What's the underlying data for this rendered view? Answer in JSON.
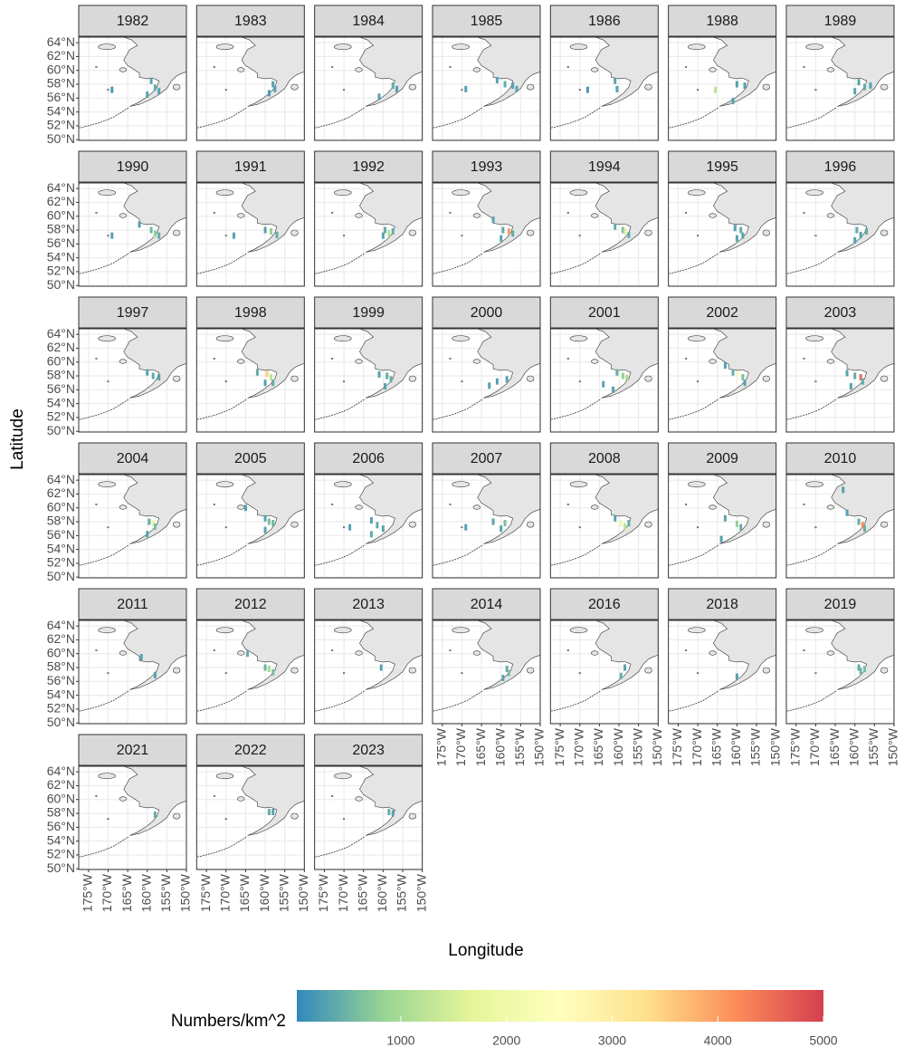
{
  "chart_data": {
    "type": "map",
    "y_label": "Latitude",
    "x_label": "Longitude",
    "xlim": [
      -177.5,
      -150
    ],
    "ylim": [
      49.9,
      64.8
    ],
    "xticks": [
      {
        "value": -175,
        "label": "175°W"
      },
      {
        "value": -170,
        "label": "170°W"
      },
      {
        "value": -165,
        "label": "165°W"
      },
      {
        "value": -160,
        "label": "160°W"
      },
      {
        "value": -155,
        "label": "155°W"
      },
      {
        "value": -150,
        "label": "150°W"
      }
    ],
    "yticks": [
      {
        "value": 50,
        "label": "50°N"
      },
      {
        "value": 52,
        "label": "52°N"
      },
      {
        "value": 54,
        "label": "54°N"
      },
      {
        "value": 56,
        "label": "56°N"
      },
      {
        "value": 58,
        "label": "58°N"
      },
      {
        "value": 60,
        "label": "60°N"
      },
      {
        "value": 62,
        "label": "62°N"
      },
      {
        "value": 64,
        "label": "64°N"
      }
    ],
    "grid": true,
    "colorbar": {
      "title": "Numbers/km^2",
      "lim": [
        15,
        5000
      ],
      "ticks": [
        1000,
        2000,
        3000,
        4000,
        5000
      ],
      "colors": [
        "#3288bd",
        "#99d594",
        "#e6f598",
        "#ffffbf",
        "#fee08b",
        "#fc8d59",
        "#d53e4f"
      ],
      "position": "bottom"
    },
    "facets": [
      {
        "title": "1982",
        "x": [
          -169,
          -159,
          -158,
          -160,
          -157
        ],
        "y": [
          57.2,
          58.5,
          57.5,
          56.5,
          57
        ],
        "values": [
          200,
          300,
          400,
          300,
          300
        ]
      },
      {
        "title": "1983",
        "x": [
          -158,
          -157.5,
          -159
        ],
        "y": [
          58,
          57.3,
          56.7
        ],
        "values": [
          300,
          300,
          200
        ]
      },
      {
        "title": "1984",
        "x": [
          -161,
          -157.5,
          -156.5
        ],
        "y": [
          56.2,
          57.8,
          57.3
        ],
        "values": [
          300,
          400,
          300
        ]
      },
      {
        "title": "1985",
        "x": [
          -169,
          -161,
          -159,
          -157,
          -156
        ],
        "y": [
          57.3,
          58.6,
          58,
          57.8,
          57.3
        ],
        "values": [
          300,
          300,
          400,
          300,
          300
        ]
      },
      {
        "title": "1986",
        "x": [
          -168,
          -161,
          -160.5
        ],
        "y": [
          57.2,
          58.5,
          57.3
        ],
        "values": [
          200,
          300,
          300
        ]
      },
      {
        "title": "1988",
        "x": [
          -165.5,
          -160,
          -158,
          -161
        ],
        "y": [
          57.2,
          58,
          57.8,
          55.6
        ],
        "values": [
          1200,
          300,
          300,
          300
        ]
      },
      {
        "title": "1989",
        "x": [
          -159,
          -157.5,
          -156,
          -160
        ],
        "y": [
          58.3,
          57.6,
          57.8,
          57
        ],
        "values": [
          300,
          400,
          300,
          300
        ]
      },
      {
        "title": "1990",
        "x": [
          -169,
          -162,
          -159,
          -158,
          -157
        ],
        "y": [
          57.2,
          58.8,
          58,
          57.5,
          57.2
        ],
        "values": [
          300,
          300,
          500,
          800,
          400
        ]
      },
      {
        "title": "1991",
        "x": [
          -168,
          -160,
          -158.5,
          -157
        ],
        "y": [
          57.2,
          58,
          57.8,
          57.3
        ],
        "values": [
          300,
          300,
          800,
          400
        ]
      },
      {
        "title": "1992",
        "x": [
          -159.5,
          -158.5,
          -157.5,
          -160
        ],
        "y": [
          58,
          57.5,
          57.8,
          57.2
        ],
        "values": [
          400,
          1100,
          400,
          300
        ]
      },
      {
        "title": "1993",
        "x": [
          -162,
          -159.5,
          -158,
          -157,
          -160
        ],
        "y": [
          59.5,
          58,
          57.8,
          57.5,
          56.8
        ],
        "values": [
          300,
          400,
          4000,
          400,
          300
        ]
      },
      {
        "title": "1994",
        "x": [
          -161,
          -159,
          -158.5,
          -157.5
        ],
        "y": [
          58.5,
          58,
          57.8,
          57.3
        ],
        "values": [
          400,
          600,
          1500,
          400
        ]
      },
      {
        "title": "1995",
        "x": [
          -160.5,
          -159,
          -158.5,
          -160
        ],
        "y": [
          58.3,
          58,
          57.2,
          56.8
        ],
        "values": [
          300,
          400,
          300,
          300
        ]
      },
      {
        "title": "1996",
        "x": [
          -159.5,
          -158.5,
          -157,
          -160
        ],
        "y": [
          58,
          57.3,
          57.8,
          56.5
        ],
        "values": [
          400,
          300,
          400,
          300
        ]
      },
      {
        "title": "1997",
        "x": [
          -160,
          -158.5,
          -157
        ],
        "y": [
          58.5,
          58,
          57.8
        ],
        "values": [
          300,
          400,
          300
        ]
      },
      {
        "title": "1998",
        "x": [
          -162,
          -159.5,
          -158.5,
          -158,
          -160
        ],
        "y": [
          58.5,
          58.3,
          57.8,
          57,
          57
        ],
        "values": [
          400,
          3500,
          1200,
          400,
          300
        ]
      },
      {
        "title": "1999",
        "x": [
          -161,
          -159,
          -158,
          -159.5
        ],
        "y": [
          58.2,
          58,
          57.5,
          56.5
        ],
        "values": [
          300,
          400,
          400,
          300
        ]
      },
      {
        "title": "2000",
        "x": [
          -163,
          -161,
          -158.5
        ],
        "y": [
          56.6,
          57.2,
          57.5
        ],
        "values": [
          300,
          300,
          300
        ]
      },
      {
        "title": "2001",
        "x": [
          -160.5,
          -159,
          -158,
          -164,
          -161.5
        ],
        "y": [
          58.5,
          58,
          57.7,
          56.8,
          56
        ],
        "values": [
          400,
          800,
          1000,
          300,
          300
        ]
      },
      {
        "title": "2002",
        "x": [
          -163,
          -161,
          -159.5,
          -158.5,
          -158
        ],
        "y": [
          59.5,
          58.5,
          58.3,
          57.8,
          57
        ],
        "values": [
          300,
          400,
          2500,
          600,
          300
        ]
      },
      {
        "title": "2003",
        "x": [
          -162,
          -160,
          -158.5,
          -158,
          -161
        ],
        "y": [
          58.4,
          58,
          57.8,
          57.2,
          56.5
        ],
        "values": [
          300,
          400,
          4500,
          400,
          300
        ]
      },
      {
        "title": "2004",
        "x": [
          -159.5,
          -158.5,
          -158,
          -160
        ],
        "y": [
          58,
          57.8,
          57.3,
          56.2
        ],
        "values": [
          400,
          1800,
          600,
          300
        ]
      },
      {
        "title": "2005",
        "x": [
          -165,
          -160,
          -159,
          -158,
          -160
        ],
        "y": [
          60,
          58.5,
          58,
          57.8,
          56.8
        ],
        "values": [
          300,
          300,
          600,
          500,
          300
        ]
      },
      {
        "title": "2006",
        "x": [
          -168.5,
          -163,
          -161.5,
          -160,
          -163
        ],
        "y": [
          57.2,
          58.2,
          57.5,
          57,
          56.2
        ],
        "values": [
          300,
          300,
          400,
          300,
          400
        ]
      },
      {
        "title": "2007",
        "x": [
          -169,
          -162,
          -159,
          -160
        ],
        "y": [
          57.2,
          58,
          57.8,
          57
        ],
        "values": [
          300,
          300,
          600,
          300
        ]
      },
      {
        "title": "2008",
        "x": [
          -161,
          -159.5,
          -158.5,
          -157.5
        ],
        "y": [
          58.5,
          57.8,
          57.3,
          57.8
        ],
        "values": [
          300,
          2000,
          1200,
          400
        ]
      },
      {
        "title": "2009",
        "x": [
          -163,
          -160,
          -159,
          -164
        ],
        "y": [
          58.5,
          57.7,
          57.2,
          55.5
        ],
        "values": [
          300,
          800,
          400,
          300
        ]
      },
      {
        "title": "2010",
        "x": [
          -163,
          -162,
          -159,
          -158,
          -157.5
        ],
        "y": [
          62.6,
          59.3,
          58,
          57.5,
          57
        ],
        "values": [
          300,
          300,
          400,
          4200,
          400
        ]
      },
      {
        "title": "2011",
        "x": [
          -161.5,
          -158
        ],
        "y": [
          59.5,
          56.9
        ],
        "values": [
          300,
          300
        ]
      },
      {
        "title": "2012",
        "x": [
          -164.5,
          -160,
          -159,
          -158
        ],
        "y": [
          60,
          58,
          57.8,
          57.3
        ],
        "values": [
          400,
          500,
          1000,
          600
        ]
      },
      {
        "title": "2013",
        "x": [
          -160.5
        ],
        "y": [
          58
        ],
        "values": [
          300
        ]
      },
      {
        "title": "2014",
        "x": [
          -158.5,
          -158,
          -159.5
        ],
        "y": [
          57.8,
          57.2,
          56.5
        ],
        "values": [
          400,
          600,
          300
        ]
      },
      {
        "title": "2016",
        "x": [
          -158.5,
          -159.5
        ],
        "y": [
          58,
          56.8
        ],
        "values": [
          300,
          400
        ]
      },
      {
        "title": "2018",
        "x": [
          -160
        ],
        "y": [
          56.7
        ],
        "values": [
          300
        ]
      },
      {
        "title": "2019",
        "x": [
          -159,
          -158.5,
          -157.5
        ],
        "y": [
          58,
          57.5,
          57.8
        ],
        "values": [
          400,
          500,
          600
        ]
      },
      {
        "title": "2021",
        "x": [
          -158
        ],
        "y": [
          57.8
        ],
        "values": [
          400
        ]
      },
      {
        "title": "2022",
        "x": [
          -159,
          -158
        ],
        "y": [
          58.2,
          58.2
        ],
        "values": [
          400,
          300
        ]
      },
      {
        "title": "2023",
        "x": [
          -158.5,
          -157.5
        ],
        "y": [
          58.2,
          58
        ],
        "values": [
          400,
          300
        ]
      }
    ]
  }
}
